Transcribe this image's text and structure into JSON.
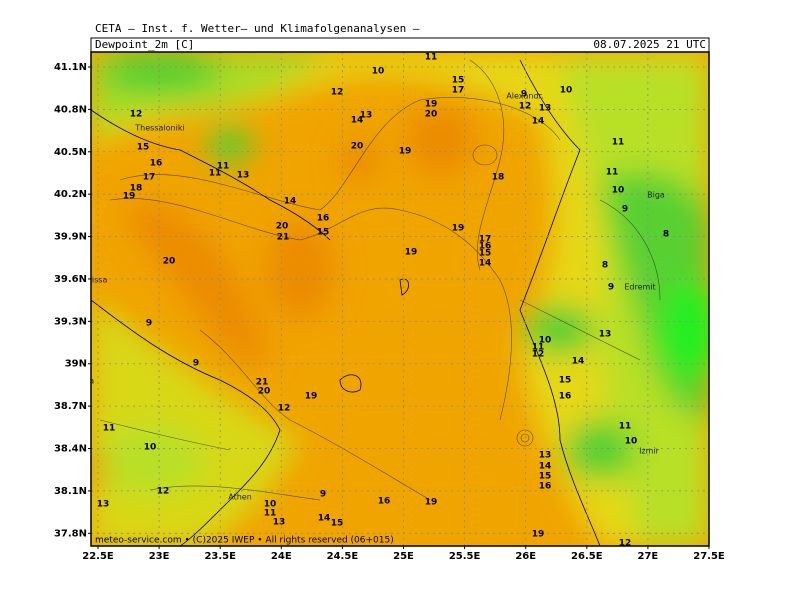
{
  "map": {
    "header": "CETA — Inst. f. Wetter— und Klimafolgenanalysen —",
    "variable": "Dewpoint_2m [C]",
    "datetime": "08.07.2025 21 UTC",
    "footer": "meteo-service.com • (C)2025 IWEP • All rights reserved (06+015)",
    "lat_ticks": [
      {
        "value": 41.1,
        "label": "41.1N"
      },
      {
        "value": 40.8,
        "label": "40.8N"
      },
      {
        "value": 40.5,
        "label": "40.5N"
      },
      {
        "value": 40.2,
        "label": "40.2N"
      },
      {
        "value": 39.9,
        "label": "39.9N"
      },
      {
        "value": 39.6,
        "label": "39.6N"
      },
      {
        "value": 39.3,
        "label": "39.3N"
      },
      {
        "value": 39,
        "label": "39N"
      },
      {
        "value": 38.7,
        "label": "38.7N"
      },
      {
        "value": 38.4,
        "label": "38.4N"
      },
      {
        "value": 38.1,
        "label": "38.1N"
      },
      {
        "value": 37.8,
        "label": "37.8N"
      }
    ],
    "lon_ticks": [
      {
        "value": 22.5,
        "label": "22.5E"
      },
      {
        "value": 23,
        "label": "23E"
      },
      {
        "value": 23.5,
        "label": "23.5E"
      },
      {
        "value": 24,
        "label": "24E"
      },
      {
        "value": 24.5,
        "label": "24.5E"
      },
      {
        "value": 25,
        "label": "25E"
      },
      {
        "value": 25.5,
        "label": "25.5E"
      },
      {
        "value": 26,
        "label": "26E"
      },
      {
        "value": 26.5,
        "label": "26.5E"
      },
      {
        "value": 27,
        "label": "27E"
      },
      {
        "value": 27.5,
        "label": "27.5E"
      }
    ],
    "cities": [
      "Thessaloniki",
      "Alexandr.",
      "rissa",
      "Lamia",
      "Athen",
      "Biga",
      "Edremit",
      "Izmir"
    ],
    "contour_labels": [
      10,
      11,
      15,
      17,
      9,
      12,
      13,
      10,
      14,
      12,
      14,
      13,
      19,
      20,
      12,
      15,
      16,
      17,
      18,
      19,
      11,
      11,
      13,
      14,
      20,
      19,
      18,
      11,
      11,
      10,
      9,
      8,
      20,
      21,
      16,
      15,
      19,
      19,
      17,
      16,
      15,
      14,
      20,
      8,
      9,
      9,
      9,
      10,
      11,
      12,
      14,
      13,
      15,
      16,
      21,
      20,
      19,
      12,
      11,
      10,
      11,
      10,
      13,
      14,
      15,
      16,
      12,
      13,
      9,
      16,
      19,
      10,
      11,
      13,
      14,
      15,
      19,
      12
    ]
  }
}
